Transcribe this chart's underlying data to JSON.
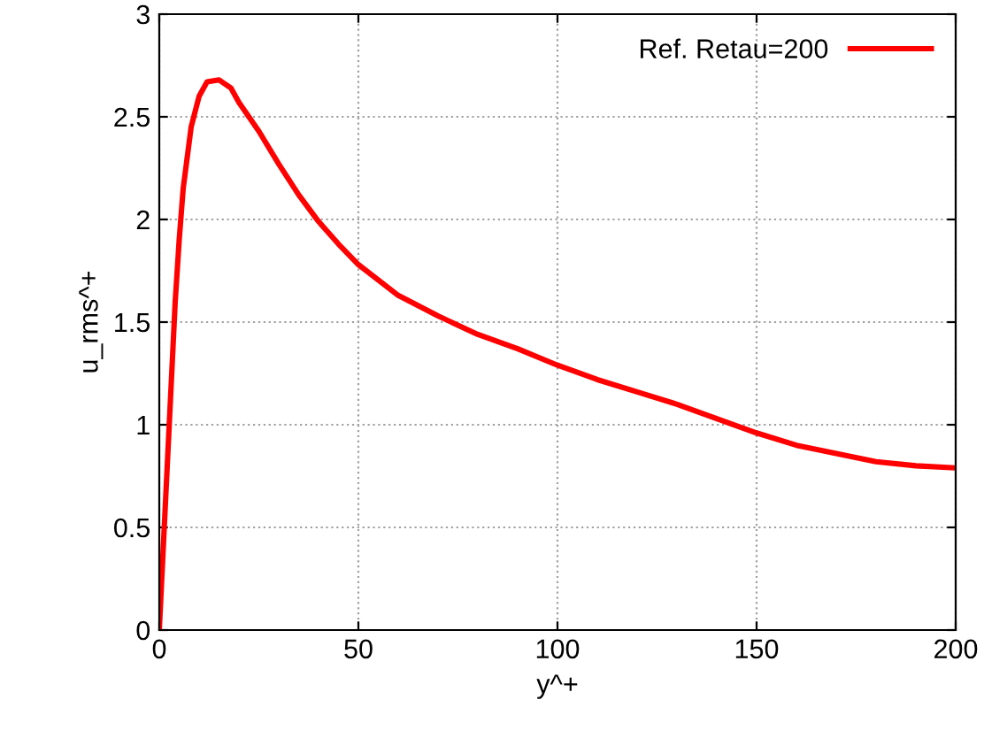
{
  "chart_data": {
    "type": "line",
    "xlabel": "y^+",
    "ylabel": "u_rms^+",
    "series": [
      {
        "name": "Ref. Retau=200",
        "color": "#ff0000",
        "x": [
          0,
          1,
          2,
          3,
          4,
          5,
          6,
          8,
          10,
          12,
          15,
          18,
          20,
          25,
          30,
          35,
          40,
          45,
          50,
          60,
          70,
          80,
          90,
          100,
          110,
          120,
          130,
          140,
          150,
          160,
          170,
          180,
          190,
          200
        ],
        "values": [
          0,
          0.4,
          0.8,
          1.2,
          1.6,
          1.9,
          2.15,
          2.45,
          2.6,
          2.67,
          2.68,
          2.64,
          2.57,
          2.43,
          2.27,
          2.12,
          1.99,
          1.88,
          1.78,
          1.63,
          1.53,
          1.44,
          1.37,
          1.29,
          1.22,
          1.16,
          1.1,
          1.03,
          0.96,
          0.9,
          0.86,
          0.82,
          0.8,
          0.79
        ]
      }
    ],
    "xlim": [
      0,
      200
    ],
    "xticks": [
      0,
      50,
      100,
      150,
      200
    ],
    "ylim": [
      0,
      3
    ],
    "yticks": [
      0,
      0.5,
      1,
      1.5,
      2,
      2.5,
      3
    ],
    "grid": true,
    "legend": "top right",
    "line_style": "solid",
    "marker": "none"
  }
}
